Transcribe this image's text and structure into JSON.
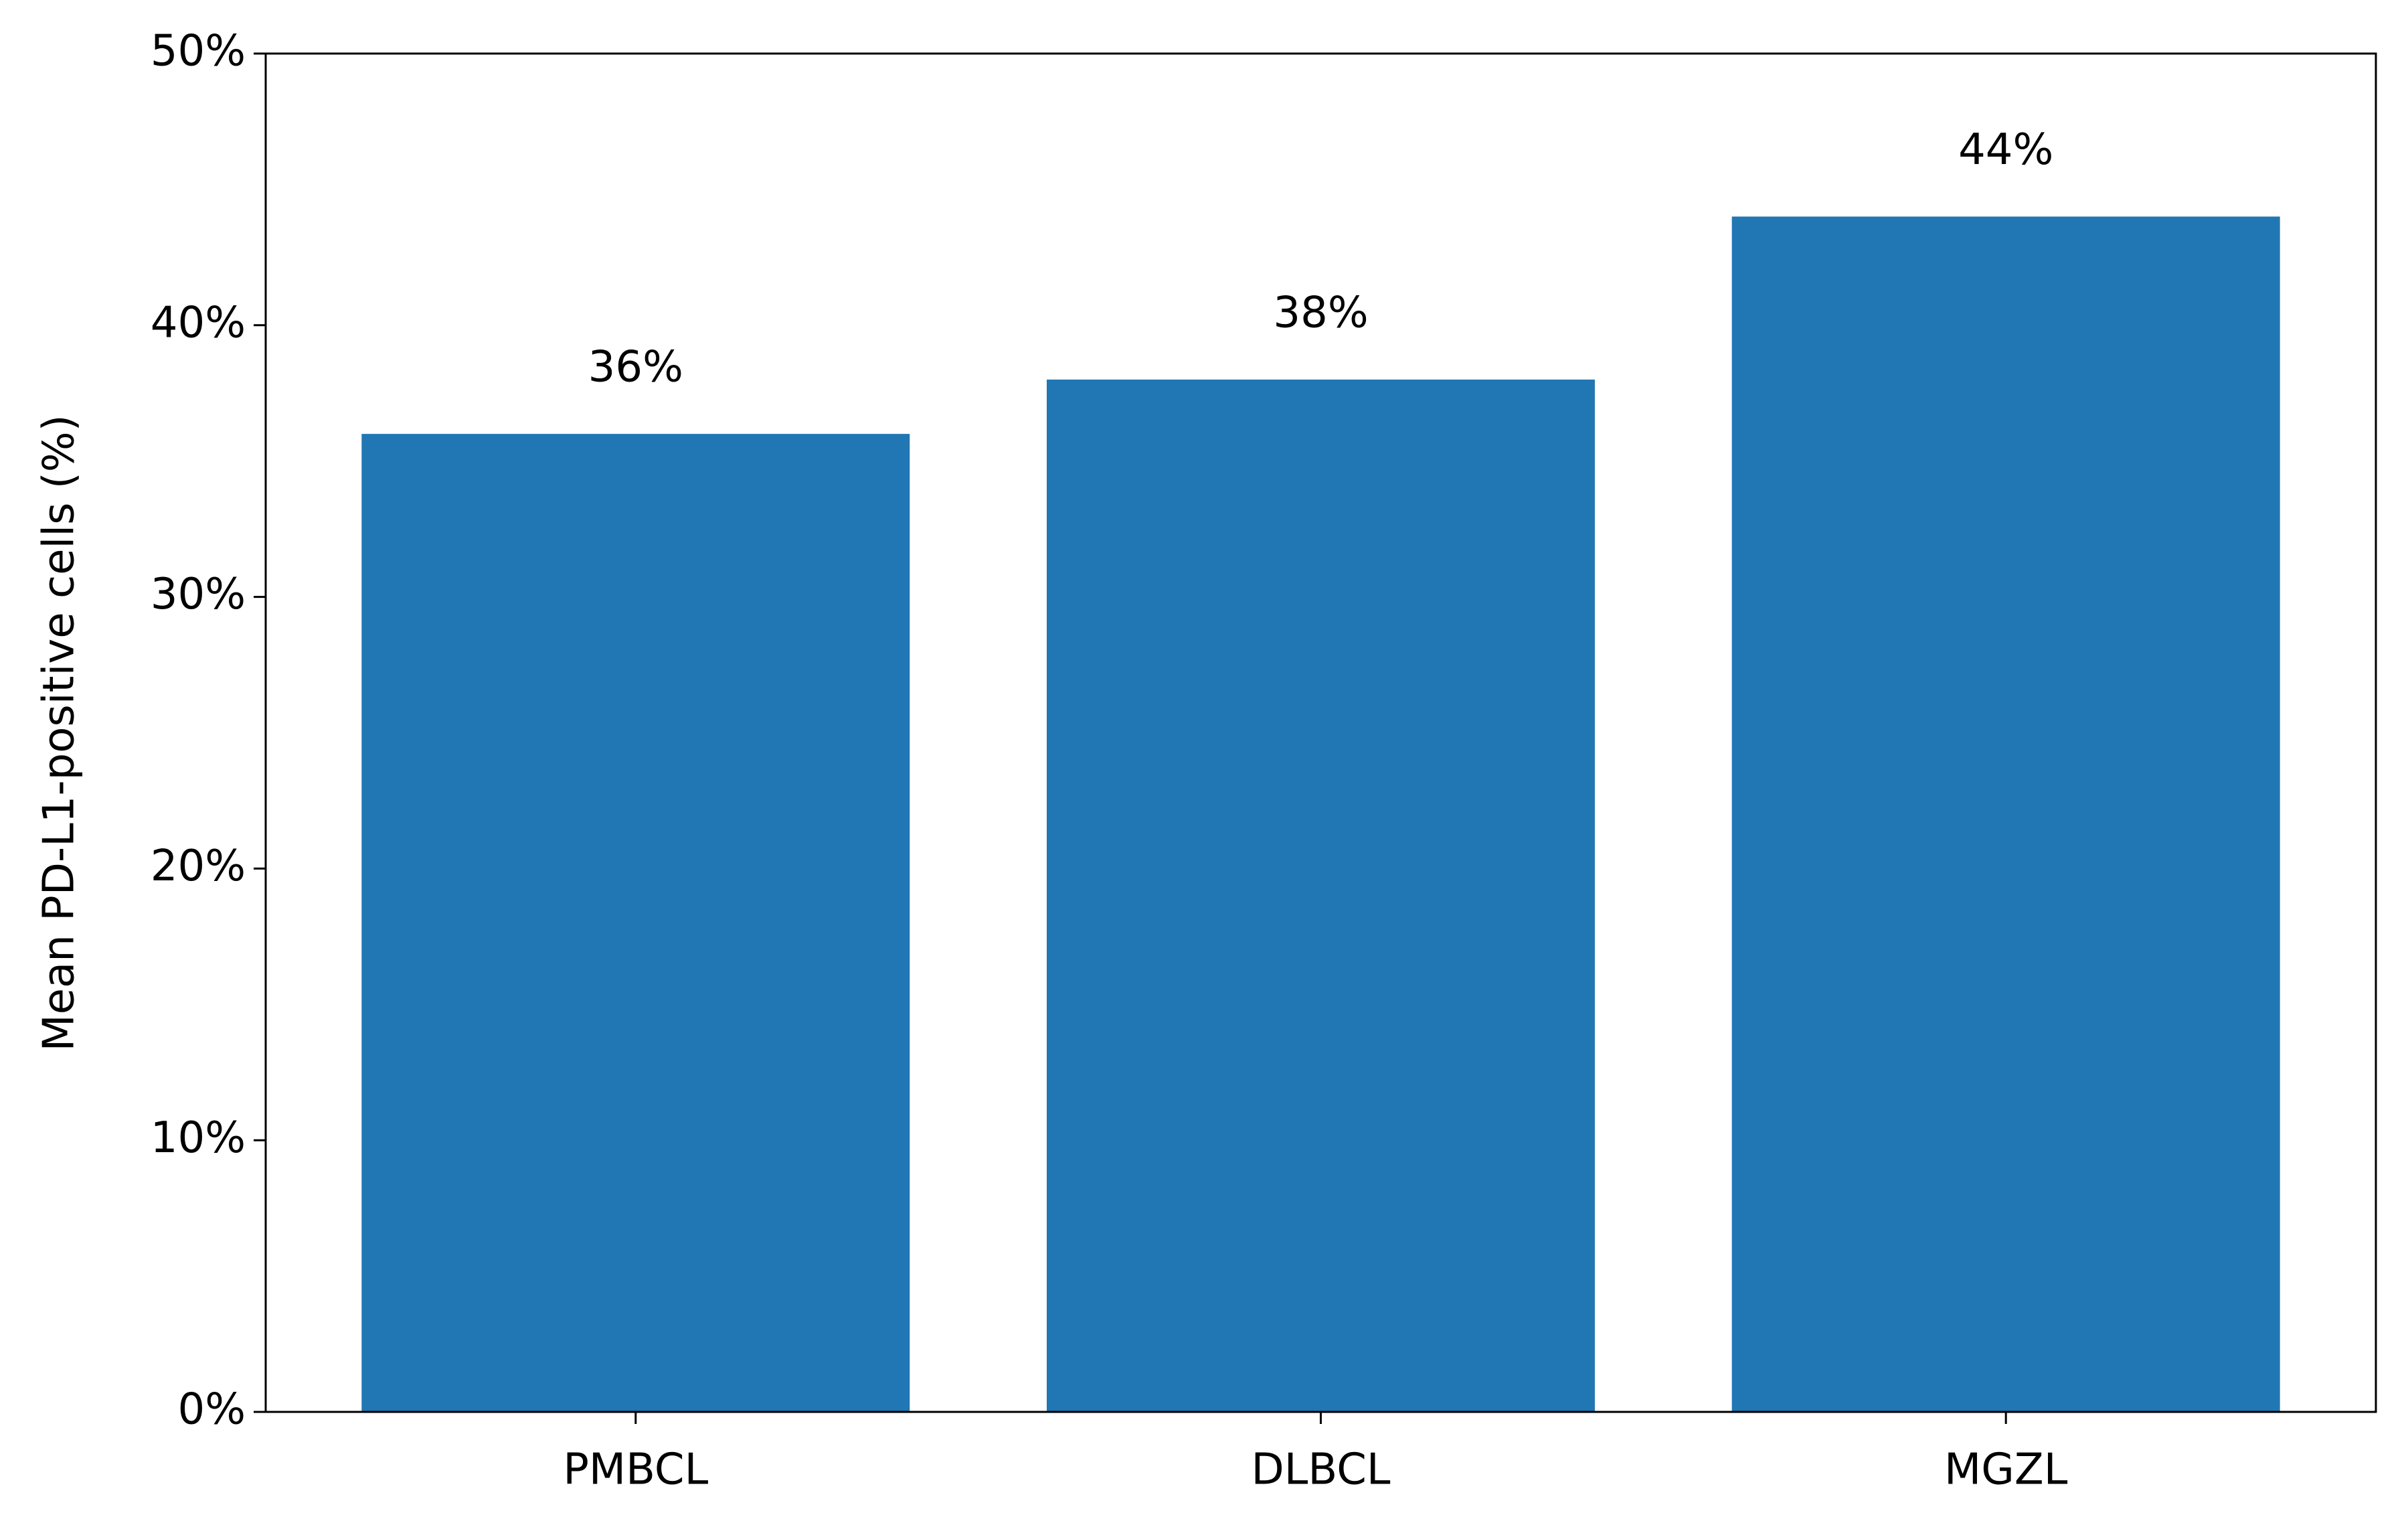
{
  "chart_data": {
    "type": "bar",
    "y_label": "Mean PD-L1-positive cells (%)",
    "categories": [
      "PMBCL",
      "DLBCL",
      "MGZL"
    ],
    "values": [
      36,
      38,
      44
    ],
    "value_labels": [
      "36%",
      "38%",
      "44%"
    ],
    "color": "#2077b4",
    "ylim": [
      0,
      50
    ],
    "yticks": [
      {
        "value": 0,
        "label": "0%"
      },
      {
        "value": 10,
        "label": "10%"
      },
      {
        "value": 20,
        "label": "20%"
      },
      {
        "value": 30,
        "label": "30%"
      },
      {
        "value": 40,
        "label": "40%"
      },
      {
        "value": 50,
        "label": "50%"
      }
    ],
    "grid": false
  }
}
